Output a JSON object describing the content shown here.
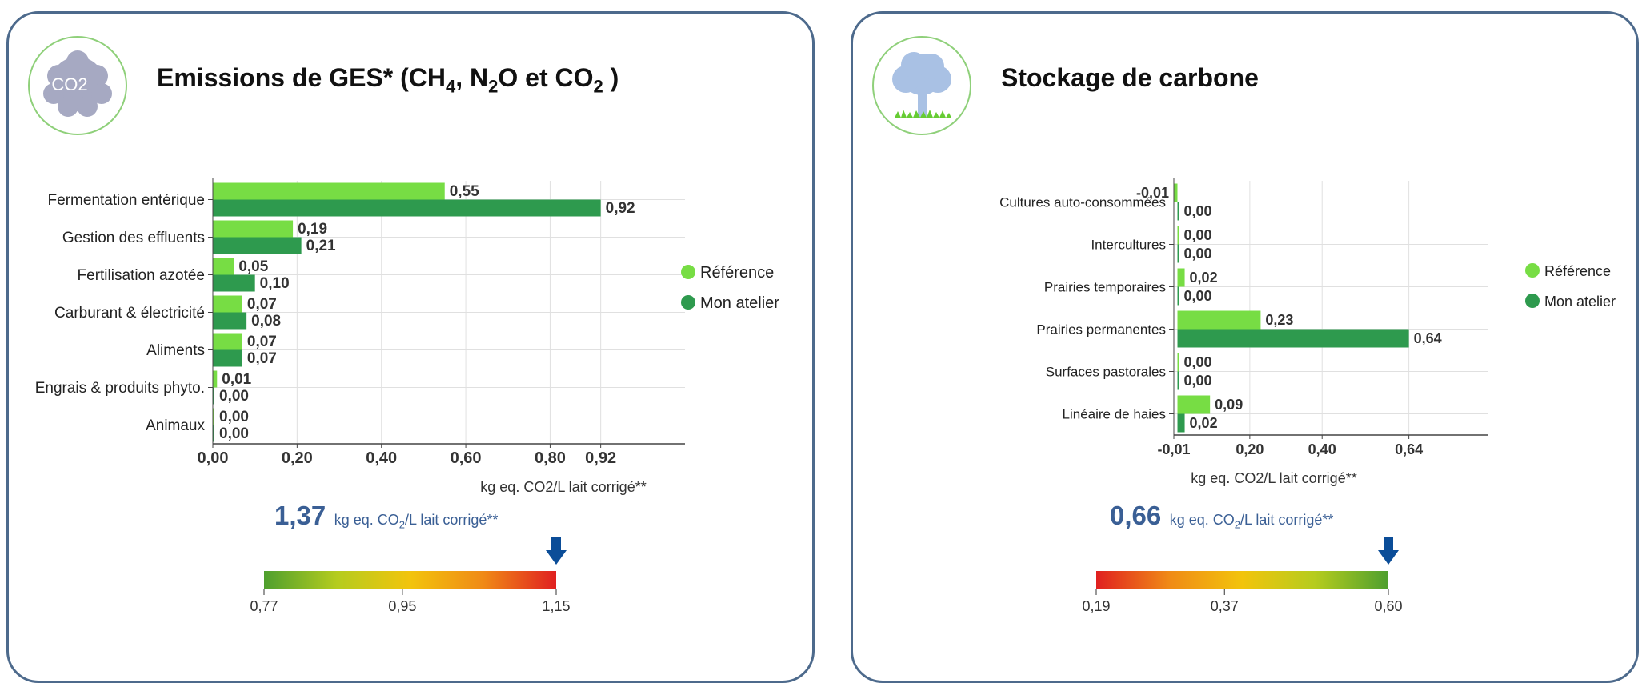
{
  "colors": {
    "reference": "#77dd44",
    "mon_atelier": "#2e9a4e",
    "panel_border": "#4d6a8c",
    "total_text": "#3a5f95",
    "arrow": "#0b4d98"
  },
  "panels": [
    {
      "icon": "co2-cloud-icon",
      "icon_text": "CO2",
      "title": "Emissions de GES* (CH4, N2O et CO2 )",
      "total_value": "1,37",
      "total_unit": "kg eq. CO2/L lait corrigé**",
      "gauge": {
        "direction": "green-to-red",
        "ticks": [
          "0,77",
          "0,95",
          "1,15"
        ],
        "min": 0.77,
        "max": 1.15,
        "marker_value": 1.15
      }
    },
    {
      "icon": "tree-icon",
      "title": "Stockage de carbone",
      "total_value": "0,66",
      "total_unit": "kg eq. CO2/L lait corrigé**",
      "gauge": {
        "direction": "red-to-green",
        "ticks": [
          "0,19",
          "0,37",
          "0,60"
        ],
        "min": 0.19,
        "max": 0.6,
        "marker_value": 0.6
      }
    }
  ],
  "chart_data": [
    {
      "type": "bar",
      "orientation": "horizontal",
      "categories": [
        "Fermentation entérique",
        "Gestion des effluents",
        "Fertilisation azotée",
        "Carburant & électricité",
        "Aliments",
        "Engrais & produits phyto.",
        "Animaux"
      ],
      "series": [
        {
          "name": "Référence",
          "values": [
            0.55,
            0.19,
            0.05,
            0.07,
            0.07,
            0.01,
            0.0
          ],
          "labels": [
            "0,55",
            "0,19",
            "0,05",
            "0,07",
            "0,07",
            "0,01",
            "0,00"
          ]
        },
        {
          "name": "Mon atelier",
          "values": [
            0.92,
            0.21,
            0.1,
            0.08,
            0.07,
            0.0,
            0.0
          ],
          "labels": [
            "0,92",
            "0,21",
            "0,10",
            "0,08",
            "0,07",
            "0,00",
            "0,00"
          ]
        }
      ],
      "x_ticks": [
        0,
        0.2,
        0.4,
        0.6,
        0.8,
        0.92
      ],
      "x_tick_labels": [
        "0,00",
        "0,20",
        "0,40",
        "0,60",
        "0,80",
        "0,92"
      ],
      "xlim": [
        0,
        1.12
      ],
      "xlabel": "kg eq. CO2/L lait corrigé**",
      "legend": "right",
      "grid": true
    },
    {
      "type": "bar",
      "orientation": "horizontal",
      "categories": [
        "Cultures auto-consommées",
        "Intercultures",
        "Prairies temporaires",
        "Prairies permanentes",
        "Surfaces pastorales",
        "Linéaire de haies"
      ],
      "series": [
        {
          "name": "Référence",
          "values": [
            -0.01,
            0.0,
            0.02,
            0.23,
            0.0,
            0.09
          ],
          "labels": [
            "-0,01",
            "0,00",
            "0,02",
            "0,23",
            "0,00",
            "0,09"
          ]
        },
        {
          "name": "Mon atelier",
          "values": [
            0.0,
            0.0,
            0.0,
            0.64,
            0.0,
            0.02
          ],
          "labels": [
            "0,00",
            "0,00",
            "0,00",
            "0,64",
            "0,00",
            "0,02"
          ]
        }
      ],
      "x_ticks": [
        -0.01,
        0.2,
        0.4,
        0.64
      ],
      "x_tick_labels": [
        "-0,01",
        "0,20",
        "0,40",
        "0,64"
      ],
      "xlim": [
        -0.01,
        0.86
      ],
      "xlabel": "kg eq. CO2/L lait corrigé**",
      "legend": "right",
      "grid": true
    }
  ]
}
